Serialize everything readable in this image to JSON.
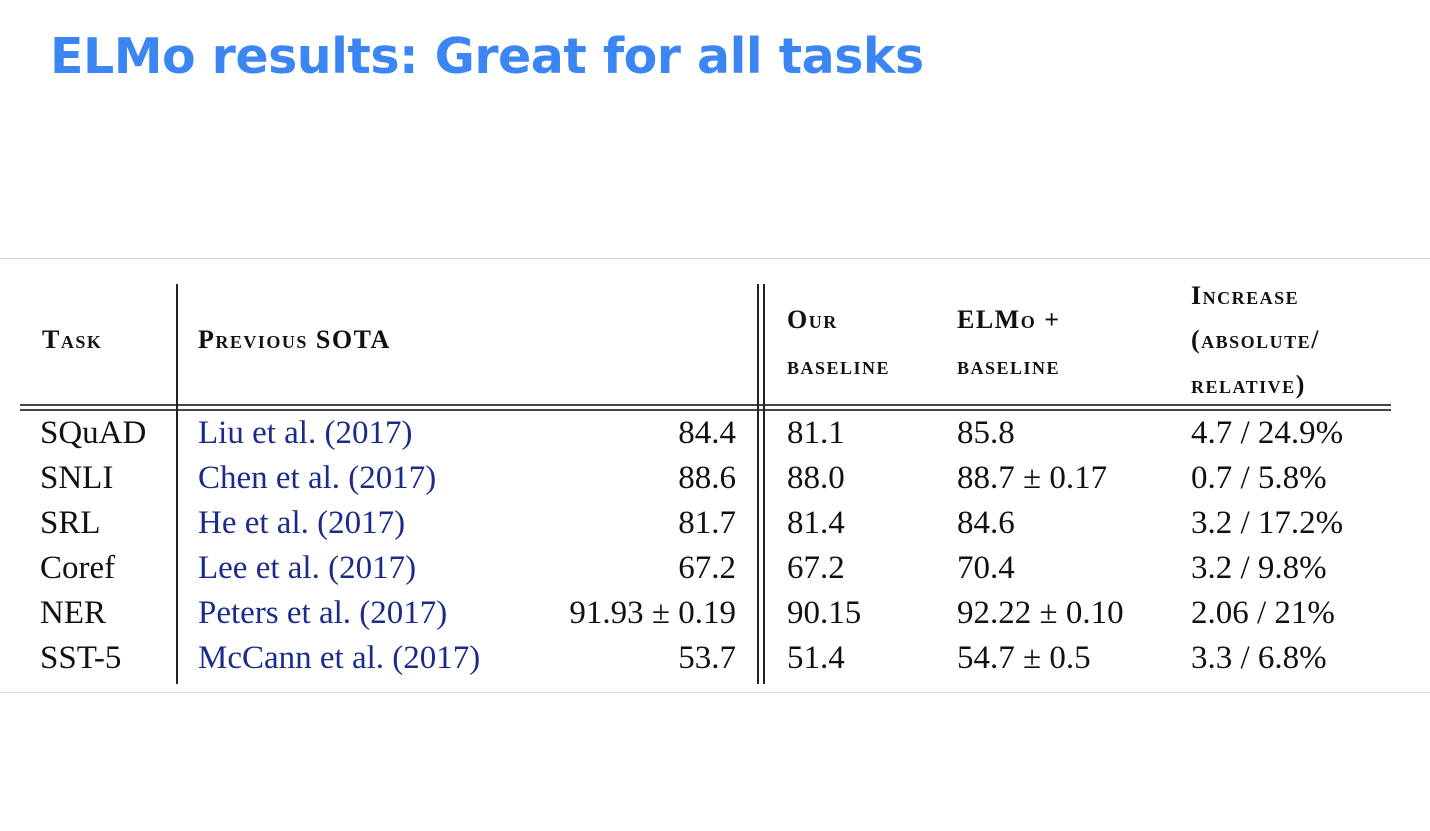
{
  "slide": {
    "title": "ELMo results: Great for all tasks"
  },
  "table": {
    "headers": {
      "task": "Task",
      "previous_sota": "Previous SOTA",
      "our_baseline": [
        "Our",
        "baseline"
      ],
      "elmo_baseline": [
        "ELMo +",
        "baseline"
      ],
      "increase": [
        "Increase",
        "(absolute/",
        "relative)"
      ]
    },
    "rows": [
      {
        "task": "SQuAD",
        "ref": "Liu et al. (2017)",
        "sota": "84.4",
        "baseline": "81.1",
        "elmo": "85.8",
        "increase": "4.7 / 24.9%"
      },
      {
        "task": "SNLI",
        "ref": "Chen et al. (2017)",
        "sota": "88.6",
        "baseline": "88.0",
        "elmo": "88.7 ± 0.17",
        "increase": "0.7 / 5.8%"
      },
      {
        "task": "SRL",
        "ref": "He et al. (2017)",
        "sota": "81.7",
        "baseline": "81.4",
        "elmo": "84.6",
        "increase": "3.2 / 17.2%"
      },
      {
        "task": "Coref",
        "ref": "Lee et al. (2017)",
        "sota": "67.2",
        "baseline": "67.2",
        "elmo": "70.4",
        "increase": "3.2 / 9.8%"
      },
      {
        "task": "NER",
        "ref": "Peters et al. (2017)",
        "sota": "91.93 ± 0.19",
        "baseline": "90.15",
        "elmo": "92.22 ± 0.10",
        "increase": "2.06 / 21%"
      },
      {
        "task": "SST-5",
        "ref": "McCann et al. (2017)",
        "sota": "53.7",
        "baseline": "51.4",
        "elmo": "54.7 ± 0.5",
        "increase": "3.3 / 6.8%"
      }
    ]
  }
}
